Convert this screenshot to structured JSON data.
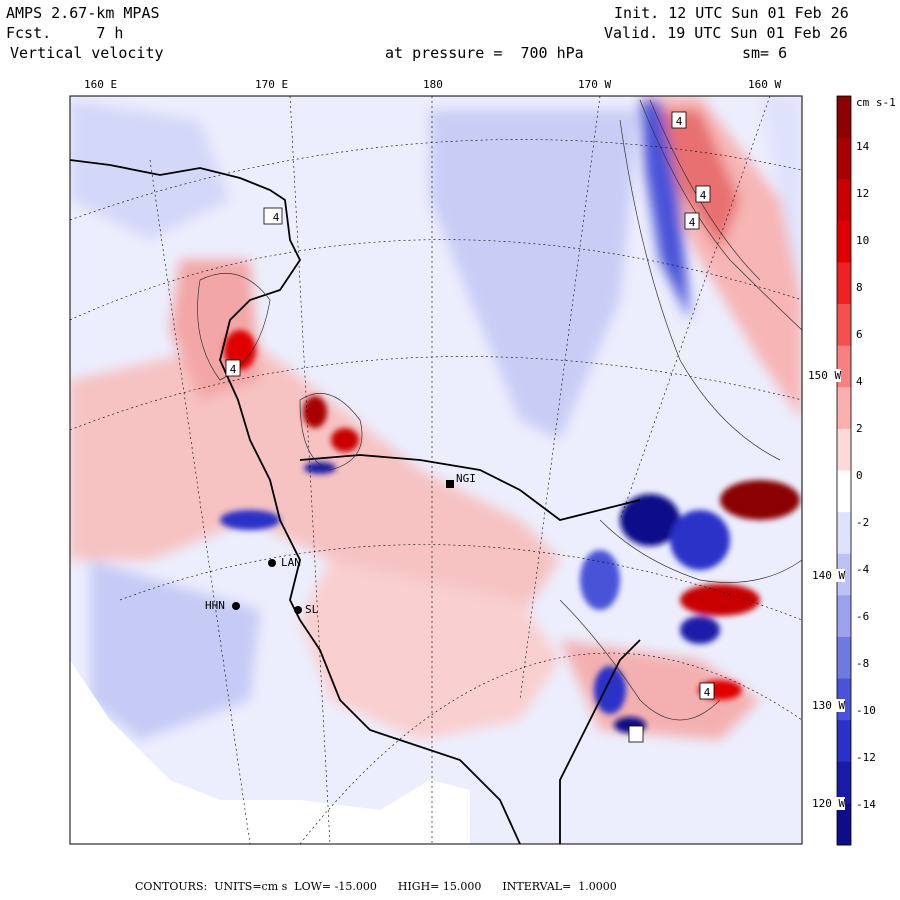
{
  "header": {
    "model": "AMPS 2.67-km MPAS",
    "fcst_label": "Fcst.",
    "fcst_value": "7 h",
    "field": "Vertical velocity",
    "init_label": "Init.",
    "init_time": "12 UTC Sun 01 Feb 26",
    "valid_label": "Valid.",
    "valid_time": "19 UTC Sun 01 Feb 26",
    "pressure_label": "at pressure =",
    "pressure_value": "700 hPa",
    "smoothing": "sm= 6"
  },
  "longitudes_top": [
    "160 E",
    "170 E",
    "180",
    "170 W",
    "160 W"
  ],
  "latitudes_right": [
    "150 W",
    "140 W",
    "130 W",
    "120 W"
  ],
  "stations": [
    "NGI",
    "LAN",
    "HHN",
    "SL"
  ],
  "contour_markers": [
    "4",
    "4",
    "4",
    "4",
    "4",
    "4"
  ],
  "colorbar": {
    "units": "cm s-1",
    "ticks": [
      "14",
      "12",
      "10",
      "8",
      "6",
      "4",
      "2",
      "0",
      "-2",
      "-4",
      "-6",
      "-8",
      "-10",
      "-12",
      "-14"
    ],
    "colors": [
      "#8b0000",
      "#a80000",
      "#c80000",
      "#e00000",
      "#ee2222",
      "#f55050",
      "#f88080",
      "#fbb0b0",
      "#fdd9d9",
      "#ffffff",
      "#dfe2fb",
      "#bcc2f4",
      "#9aa2ec",
      "#7078e3",
      "#4a52d8",
      "#2a30c8",
      "#1a1aa8",
      "#0d0d8a"
    ]
  },
  "footer": {
    "contours_label": "CONTOURS:",
    "units": "UNITS=cm s",
    "low_label": "LOW=",
    "low_value": "-15.000",
    "high_label": "HIGH=",
    "high_value": "15.000",
    "interval_label": "INTERVAL=",
    "interval_value": "1.0000"
  }
}
